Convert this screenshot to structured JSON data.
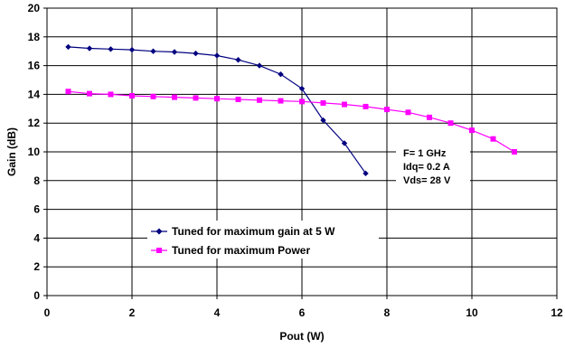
{
  "chart_data": {
    "type": "line",
    "xlabel": "Pout (W)",
    "ylabel": "Gain (dB)",
    "xlim": [
      0,
      12
    ],
    "ylim": [
      0,
      20
    ],
    "xticks": [
      0,
      2,
      4,
      6,
      8,
      10,
      12
    ],
    "yticks": [
      0,
      2,
      4,
      6,
      8,
      10,
      12,
      14,
      16,
      18,
      20
    ],
    "grid": true,
    "legend_position": "bottom-left",
    "series": [
      {
        "name": "Tuned for maximum gain at 5 W",
        "color": "#000080",
        "marker": "diamond",
        "x": [
          0.5,
          1.0,
          1.5,
          2.0,
          2.5,
          3.0,
          3.5,
          4.0,
          4.5,
          5.0,
          5.5,
          6.0,
          6.5,
          7.0,
          7.5
        ],
        "y": [
          17.3,
          17.2,
          17.15,
          17.1,
          17.0,
          16.95,
          16.85,
          16.7,
          16.4,
          16.0,
          15.4,
          14.4,
          12.2,
          10.6,
          8.5
        ]
      },
      {
        "name": "Tuned for maximum Power",
        "color": "#ff00ff",
        "marker": "square",
        "x": [
          0.5,
          1.0,
          1.5,
          2.0,
          2.5,
          3.0,
          3.5,
          4.0,
          4.5,
          5.0,
          5.5,
          6.0,
          6.5,
          7.0,
          7.5,
          8.0,
          8.5,
          9.0,
          9.5,
          10.0,
          10.5,
          11.0
        ],
        "y": [
          14.2,
          14.05,
          14.0,
          13.9,
          13.85,
          13.8,
          13.75,
          13.7,
          13.65,
          13.6,
          13.55,
          13.5,
          13.4,
          13.3,
          13.15,
          12.95,
          12.75,
          12.4,
          12.0,
          11.5,
          10.9,
          10.0
        ]
      }
    ],
    "annotations": [
      "F= 1 GHz",
      "Idq= 0.2 A",
      "Vds= 28 V"
    ]
  }
}
